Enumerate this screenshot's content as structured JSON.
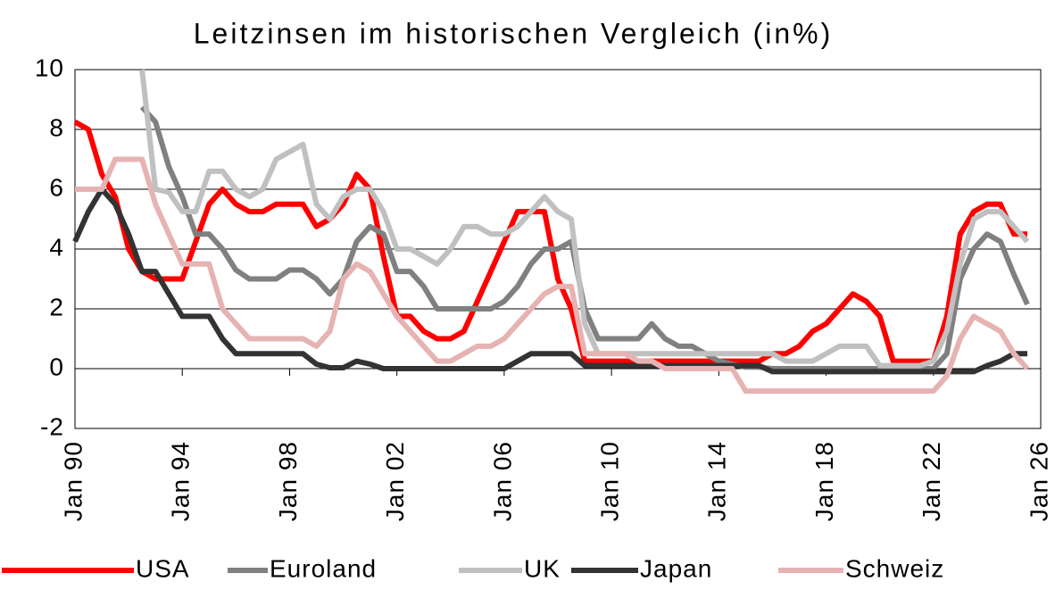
{
  "chart_data": {
    "type": "line",
    "title": "Leitzinsen im historischen Vergleich (in%)",
    "x": [
      1990,
      1990.5,
      1991,
      1991.5,
      1992,
      1992.5,
      1993,
      1993.5,
      1994,
      1994.5,
      1995,
      1995.5,
      1996,
      1996.5,
      1997,
      1997.5,
      1998,
      1998.5,
      1999,
      1999.5,
      2000,
      2000.5,
      2001,
      2001.5,
      2002,
      2002.5,
      2003,
      2003.5,
      2004,
      2004.5,
      2005,
      2005.5,
      2006,
      2006.5,
      2007,
      2007.5,
      2008,
      2008.5,
      2009,
      2009.5,
      2010,
      2010.5,
      2011,
      2011.5,
      2012,
      2012.5,
      2013,
      2013.5,
      2014,
      2014.5,
      2015,
      2015.5,
      2016,
      2016.5,
      2017,
      2017.5,
      2018,
      2018.5,
      2019,
      2019.5,
      2020,
      2020.5,
      2021,
      2021.5,
      2022,
      2022.5,
      2023,
      2023.5,
      2024,
      2024.5,
      2025,
      2025.5
    ],
    "series": [
      {
        "name": "USA",
        "color": "#ff0000",
        "values": [
          8.25,
          8,
          6.5,
          5.75,
          4,
          3.25,
          3,
          3,
          3,
          4.25,
          5.5,
          6,
          5.5,
          5.25,
          5.25,
          5.5,
          5.5,
          5.5,
          4.75,
          5,
          5.5,
          6.5,
          6,
          3.75,
          1.75,
          1.75,
          1.25,
          1,
          1,
          1.25,
          2.25,
          3.25,
          4.25,
          5.25,
          5.25,
          5.25,
          3,
          2,
          0.25,
          0.25,
          0.25,
          0.25,
          0.25,
          0.25,
          0.25,
          0.25,
          0.25,
          0.25,
          0.25,
          0.25,
          0.25,
          0.25,
          0.5,
          0.5,
          0.75,
          1.25,
          1.5,
          2,
          2.5,
          2.25,
          1.75,
          0.25,
          0.25,
          0.25,
          0.25,
          1.75,
          4.5,
          5.25,
          5.5,
          5.5,
          4.5,
          4.5
        ]
      },
      {
        "name": "Euroland",
        "color": "#808080",
        "values": [
          null,
          null,
          null,
          null,
          null,
          8.75,
          8.25,
          6.75,
          5.75,
          4.5,
          4.5,
          4,
          3.3,
          3,
          3,
          3,
          3.3,
          3.3,
          3,
          2.5,
          3,
          4.25,
          4.75,
          4.5,
          3.25,
          3.25,
          2.75,
          2,
          2,
          2,
          2,
          2,
          2.25,
          2.75,
          3.5,
          4,
          4,
          4.25,
          2,
          1,
          1,
          1,
          1,
          1.5,
          1,
          0.75,
          0.75,
          0.5,
          0.25,
          0.15,
          0.05,
          0.05,
          0,
          0,
          0,
          0,
          0,
          0,
          0,
          0,
          0,
          0,
          0,
          0,
          0,
          0.5,
          3,
          4,
          4.5,
          4.25,
          3.15,
          2.15
        ]
      },
      {
        "name": "UK",
        "color": "#c0c0c0",
        "values": [
          null,
          null,
          null,
          null,
          null,
          10,
          6,
          5.9,
          5.25,
          5.25,
          6.6,
          6.6,
          6,
          5.75,
          6,
          7,
          7.25,
          7.5,
          5.5,
          5,
          5.75,
          6,
          6,
          5.25,
          4,
          4,
          3.75,
          3.5,
          4,
          4.75,
          4.75,
          4.5,
          4.5,
          4.75,
          5.25,
          5.75,
          5.25,
          5,
          1.5,
          0.5,
          0.5,
          0.5,
          0.5,
          0.5,
          0.5,
          0.5,
          0.5,
          0.5,
          0.5,
          0.5,
          0.5,
          0.5,
          0.5,
          0.25,
          0.25,
          0.25,
          0.5,
          0.75,
          0.75,
          0.75,
          0.1,
          0.1,
          0.1,
          0.1,
          0.25,
          1.25,
          3.5,
          5,
          5.25,
          5.25,
          4.75,
          4.25
        ]
      },
      {
        "name": "Japan",
        "color": "#333333",
        "values": [
          4.25,
          5.25,
          6,
          5.5,
          4.5,
          3.25,
          3.25,
          2.5,
          1.75,
          1.75,
          1.75,
          1,
          0.5,
          0.5,
          0.5,
          0.5,
          0.5,
          0.5,
          0.15,
          0.03,
          0.03,
          0.25,
          0.15,
          0,
          0,
          0,
          0,
          0,
          0,
          0,
          0,
          0,
          0,
          0.25,
          0.5,
          0.5,
          0.5,
          0.5,
          0.1,
          0.1,
          0.1,
          0.1,
          0.1,
          0.1,
          0.1,
          0.1,
          0.1,
          0.1,
          0.1,
          0.1,
          0.1,
          0.1,
          -0.1,
          -0.1,
          -0.1,
          -0.1,
          -0.1,
          -0.1,
          -0.1,
          -0.1,
          -0.1,
          -0.1,
          -0.1,
          -0.1,
          -0.1,
          -0.1,
          -0.1,
          -0.1,
          0.1,
          0.25,
          0.5,
          0.5
        ]
      },
      {
        "name": "Schweiz",
        "color": "#e6b3b3",
        "values": [
          6,
          6,
          6,
          7,
          7,
          7,
          5.5,
          4.5,
          3.5,
          3.5,
          3.5,
          2,
          1.5,
          1,
          1,
          1,
          1,
          1,
          0.75,
          1.25,
          3,
          3.5,
          3.25,
          2.5,
          1.75,
          1.25,
          0.75,
          0.25,
          0.25,
          0.5,
          0.75,
          0.75,
          1,
          1.5,
          2,
          2.5,
          2.75,
          2.75,
          0.5,
          0.5,
          0.5,
          0.5,
          0.25,
          0.25,
          0,
          0,
          0,
          0,
          0,
          0,
          -0.75,
          -0.75,
          -0.75,
          -0.75,
          -0.75,
          -0.75,
          -0.75,
          -0.75,
          -0.75,
          -0.75,
          -0.75,
          -0.75,
          -0.75,
          -0.75,
          -0.75,
          -0.25,
          1,
          1.75,
          1.5,
          1.25,
          0.5,
          0
        ]
      }
    ],
    "xlim": [
      1990,
      2026
    ],
    "xticks": [
      {
        "value": 1990,
        "label": "Jan 90"
      },
      {
        "value": 1994,
        "label": "Jan 94"
      },
      {
        "value": 1998,
        "label": "Jan 98"
      },
      {
        "value": 2002,
        "label": "Jan 02"
      },
      {
        "value": 2006,
        "label": "Jan 06"
      },
      {
        "value": 2010,
        "label": "Jan 10"
      },
      {
        "value": 2014,
        "label": "Jan 14"
      },
      {
        "value": 2018,
        "label": "Jan 18"
      },
      {
        "value": 2022,
        "label": "Jan 22"
      },
      {
        "value": 2026,
        "label": "Jan 26"
      }
    ],
    "ylim": [
      -2,
      10
    ],
    "yticks": [
      -2,
      0,
      2,
      4,
      6,
      8,
      10
    ],
    "grid": true,
    "legend": "bottom"
  }
}
